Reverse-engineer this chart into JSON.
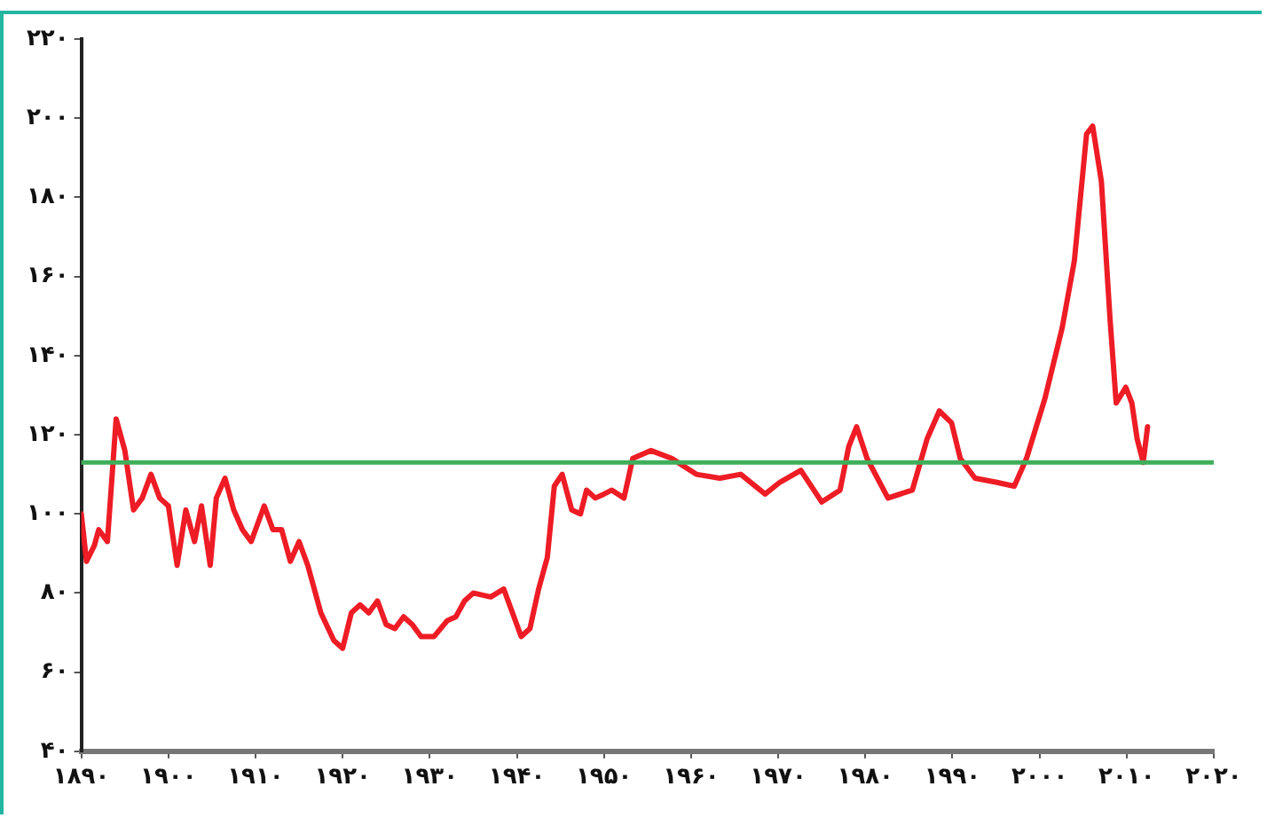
{
  "chart_data": {
    "type": "line",
    "x": [
      1890,
      1890.6,
      1891.5,
      1892,
      1893,
      1894,
      1895,
      1896,
      1897,
      1898,
      1899,
      1900,
      1901,
      1902,
      1903,
      1903.8,
      1904.8,
      1905.5,
      1906.5,
      1907.5,
      1908.5,
      1909.5,
      1911,
      1912,
      1913,
      1914,
      1915,
      1916,
      1917.5,
      1919,
      1920,
      1921,
      1922,
      1923,
      1924,
      1925,
      1926,
      1927,
      1928,
      1929,
      1930.5,
      1932,
      1933,
      1934,
      1935,
      1937,
      1938.5,
      1940.5,
      1941.5,
      1942.5,
      1943.5,
      1944.3,
      1945.2,
      1946.3,
      1947.3,
      1948,
      1949,
      1950,
      1950.9,
      1952.3,
      1953.3,
      1955.4,
      1957.8,
      1960.6,
      1963.3,
      1965.7,
      1968.5,
      1970.2,
      1972.6,
      1975,
      1977.1,
      1978.1,
      1979,
      1980.2,
      1982.6,
      1985.4,
      1987.1,
      1988.5,
      1989.9,
      1990.9,
      1992.6,
      1995,
      1997.1,
      1998.5,
      2000.6,
      2002.6,
      2004,
      2005.4,
      2006.1,
      2007.1,
      2008.1,
      2008.8,
      2009.9,
      2010.6,
      2011.2,
      2011.9,
      2012.4
    ],
    "series": [
      {
        "color": "#ee1c25",
        "values": [
          100,
          88,
          92,
          96,
          93,
          124,
          116,
          101,
          104,
          110,
          104,
          102,
          87,
          101,
          93,
          102,
          87,
          104,
          109,
          101,
          96,
          93,
          102,
          96,
          96,
          88,
          93,
          87,
          75,
          68,
          66,
          75,
          77,
          75,
          78,
          72,
          71,
          74,
          72,
          69,
          69,
          73,
          74,
          78,
          80,
          79,
          81,
          69,
          71,
          81,
          89,
          107,
          110,
          101,
          100,
          106,
          104,
          105,
          106,
          104,
          114,
          116,
          114,
          110,
          109,
          110,
          105,
          108,
          111,
          103,
          106,
          117,
          122,
          114,
          104,
          106,
          119,
          126,
          123,
          114,
          109,
          108,
          107,
          114,
          129,
          147,
          164,
          196,
          198,
          184,
          149,
          128,
          132,
          128,
          119,
          113,
          122
        ]
      }
    ],
    "xlim": [
      1890,
      2020
    ],
    "xticks": [
      {
        "value": 1890,
        "label": "۱۸۹۰"
      },
      {
        "value": 1900,
        "label": "۱۹۰۰"
      },
      {
        "value": 1910,
        "label": "۱۹۱۰"
      },
      {
        "value": 1920,
        "label": "۱۹۲۰"
      },
      {
        "value": 1930,
        "label": "۱۹۳۰"
      },
      {
        "value": 1940,
        "label": "۱۹۴۰"
      },
      {
        "value": 1950,
        "label": "۱۹۵۰"
      },
      {
        "value": 1960,
        "label": "۱۹۶۰"
      },
      {
        "value": 1970,
        "label": "۱۹۷۰"
      },
      {
        "value": 1980,
        "label": "۱۹۸۰"
      },
      {
        "value": 1990,
        "label": "۱۹۹۰"
      },
      {
        "value": 2000,
        "label": "۲۰۰۰"
      },
      {
        "value": 2010,
        "label": "۲۰۱۰"
      },
      {
        "value": 2020,
        "label": "۲۰۲۰"
      }
    ],
    "ylim": [
      40,
      220
    ],
    "yticks": [
      {
        "value": 40,
        "label": "۴۰"
      },
      {
        "value": 60,
        "label": "۶۰"
      },
      {
        "value": 80,
        "label": "۸۰"
      },
      {
        "value": 100,
        "label": "۱۰۰"
      },
      {
        "value": 120,
        "label": "۱۲۰"
      },
      {
        "value": 140,
        "label": "۱۴۰"
      },
      {
        "value": 160,
        "label": "۱۶۰"
      },
      {
        "value": 180,
        "label": "۱۸۰"
      },
      {
        "value": 200,
        "label": "۲۰۰"
      },
      {
        "value": 220,
        "label": "۲۲۰"
      }
    ],
    "ref_lines": [
      {
        "axis": "y",
        "value": 113,
        "color": "#3fae5a"
      }
    ],
    "grid": false,
    "legend": false,
    "marker": "none",
    "line_style": "solid"
  }
}
